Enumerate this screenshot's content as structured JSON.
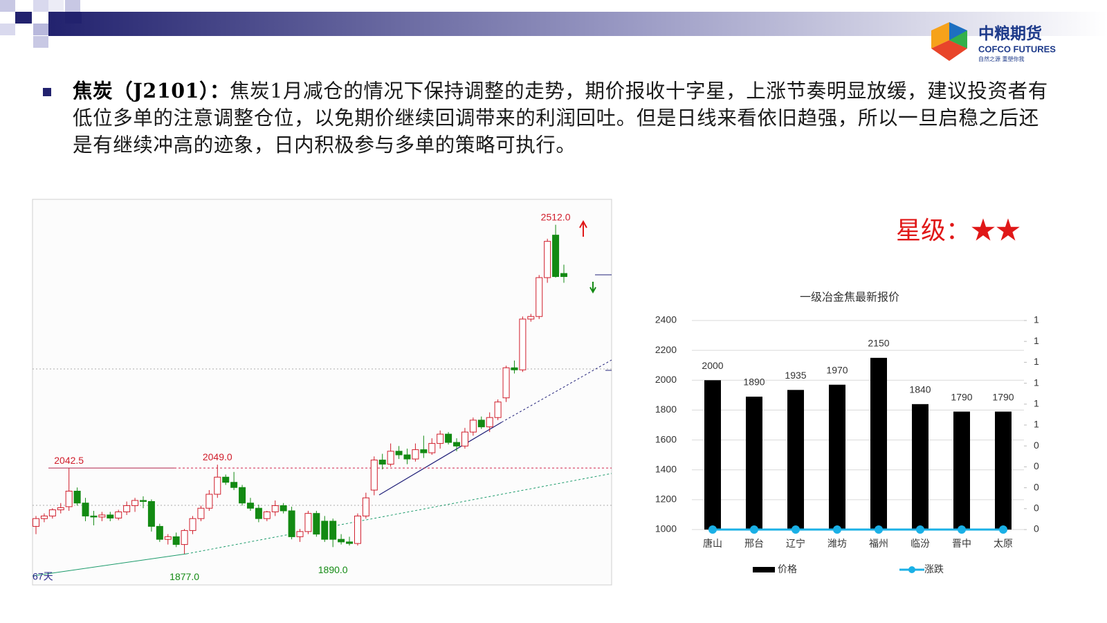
{
  "header": {
    "logo_name": "中粮期货",
    "logo_en": "COFCO FUTURES",
    "logo_slogan": "自然之源 重塑你我"
  },
  "bullet": {
    "title": "焦炭（J2101）：",
    "text": "焦炭1月减仓的情况下保持调整的走势，期价报收十字星，上涨节奏明显放缓，建议投资者有低位多单的注意调整仓位，以免期价继续回调带来的利润回吐。但是日线来看依旧趋强，所以一旦启稳之后还是有继续冲高的迹象，日内积极参与多单的策略可执行。"
  },
  "rating": "星级：★★",
  "chart_data": [
    {
      "type": "candlestick",
      "period_label": "67天",
      "up_color": "#d01c2a",
      "down_color": "#138a13",
      "ylim": [
        1817,
        2561
      ],
      "open": [
        1930,
        1945,
        1950,
        1962,
        1968,
        1998,
        1975,
        1950,
        1948,
        1952,
        1946,
        1958,
        1970,
        1980,
        1978,
        1930,
        1905,
        1910,
        1895,
        1922,
        1945,
        1965,
        1992,
        2025,
        2015,
        2005,
        1975,
        1965,
        1945,
        1958,
        1970,
        1960,
        1910,
        1920,
        1955,
        1940,
        1940,
        1905,
        1900,
        1897,
        1950,
        2000,
        2058,
        2050,
        2075,
        2068,
        2060,
        2078,
        2072,
        2090,
        2108,
        2092,
        2085,
        2112,
        2135,
        2122,
        2140,
        2178,
        2236,
        2232,
        2330,
        2335,
        2410,
        2492,
        2418
      ],
      "high": [
        1950,
        1955,
        1965,
        1975,
        2042.5,
        2005,
        1985,
        1960,
        1958,
        1958,
        1962,
        1978,
        1985,
        1988,
        1982,
        1935,
        1915,
        1918,
        1925,
        1950,
        1970,
        2000,
        2049,
        2030,
        2035,
        2010,
        1985,
        1972,
        1960,
        1980,
        1975,
        1968,
        1925,
        1960,
        1960,
        1950,
        1945,
        1915,
        1910,
        1955,
        1995,
        2065,
        2070,
        2090,
        2085,
        2080,
        2090,
        2105,
        2100,
        2115,
        2112,
        2100,
        2120,
        2140,
        2142,
        2150,
        2175,
        2240,
        2250,
        2335,
        2340,
        2415,
        2485,
        2512,
        2435
      ],
      "low": [
        1915,
        1938,
        1945,
        1955,
        1960,
        1970,
        1940,
        1932,
        1940,
        1940,
        1942,
        1952,
        1958,
        1965,
        1920,
        1900,
        1895,
        1890,
        1877,
        1915,
        1940,
        1960,
        1985,
        2010,
        2000,
        1970,
        1960,
        1938,
        1940,
        1950,
        1955,
        1905,
        1900,
        1915,
        1910,
        1900,
        1890,
        1895,
        1893,
        1893,
        1945,
        1990,
        2040,
        2045,
        2060,
        2050,
        2055,
        2062,
        2068,
        2080,
        2088,
        2075,
        2080,
        2105,
        2118,
        2112,
        2135,
        2170,
        2225,
        2228,
        2325,
        2330,
        2400,
        2410,
        2400
      ],
      "close": [
        1945,
        1950,
        1962,
        1966,
        1998,
        1975,
        1950,
        1948,
        1952,
        1946,
        1958,
        1970,
        1980,
        1978,
        1930,
        1905,
        1910,
        1895,
        1922,
        1945,
        1965,
        1992,
        2025,
        2015,
        2005,
        1975,
        1965,
        1945,
        1958,
        1970,
        1960,
        1910,
        1920,
        1955,
        1915,
        1905,
        1905,
        1900,
        1897,
        1950,
        1985,
        2058,
        2050,
        2075,
        2068,
        2060,
        2078,
        2072,
        2090,
        2108,
        2092,
        2085,
        2112,
        2135,
        2122,
        2140,
        2170,
        2236,
        2232,
        2330,
        2335,
        2410,
        2480,
        2412,
        2412
      ],
      "high_labels": [
        null,
        null,
        null,
        null,
        "2042.5",
        null,
        null,
        null,
        null,
        null,
        null,
        null,
        null,
        null,
        null,
        null,
        null,
        null,
        null,
        null,
        null,
        null,
        "2049.0",
        null,
        null,
        null,
        null,
        null,
        null,
        null,
        null,
        null,
        null,
        null,
        null,
        null,
        null,
        null,
        null,
        null,
        null,
        null,
        null,
        null,
        null,
        null,
        null,
        null,
        null,
        null,
        null,
        null,
        null,
        null,
        null,
        null,
        null,
        null,
        null,
        null,
        null,
        null,
        null,
        "2512.0",
        null
      ],
      "low_labels": [
        null,
        null,
        null,
        null,
        null,
        null,
        null,
        null,
        null,
        null,
        null,
        null,
        null,
        null,
        null,
        null,
        null,
        null,
        "1877.0",
        null,
        null,
        null,
        null,
        null,
        null,
        null,
        null,
        null,
        null,
        null,
        null,
        null,
        null,
        null,
        null,
        null,
        "1890.0",
        null,
        null,
        null,
        null,
        null,
        null,
        null,
        null,
        null,
        null,
        null,
        null,
        null,
        null,
        null,
        null,
        null,
        null,
        null,
        null,
        null,
        null,
        null,
        null,
        null,
        null,
        null,
        null
      ]
    },
    {
      "type": "bar",
      "title": "一级冶金焦最新报价",
      "categories": [
        "唐山",
        "邢台",
        "辽宁",
        "潍坊",
        "福州",
        "临汾",
        "晋中",
        "太原"
      ],
      "series": [
        {
          "name": "价格",
          "color": "#000000",
          "values": [
            2000,
            1890,
            1935,
            1970,
            2150,
            1840,
            1790,
            1790
          ]
        },
        {
          "name": "涨跌",
          "color": "#1ab0e6",
          "type": "line",
          "axis": "y2",
          "values": [
            0,
            0,
            0,
            0,
            0,
            0,
            0,
            0
          ]
        }
      ],
      "ylim": [
        1000,
        2400
      ],
      "yticks": [
        1000,
        1200,
        1400,
        1600,
        1800,
        2000,
        2200,
        2400
      ],
      "y2lim": [
        0,
        1
      ],
      "y2ticks": [
        0,
        {
          "value": 0.1,
          "label": "0"
        },
        {
          "value": 0.2,
          "label": "0"
        },
        {
          "value": 0.3,
          "label": "0"
        },
        {
          "value": 0.4,
          "label": "0"
        },
        {
          "value": 0.5,
          "label": "1"
        },
        {
          "value": 0.6,
          "label": "1"
        },
        {
          "value": 0.7,
          "label": "1"
        },
        {
          "value": 0.8,
          "label": "1"
        },
        {
          "value": 0.9,
          "label": "1"
        },
        1
      ],
      "grid": true,
      "legend": "bottom"
    }
  ]
}
